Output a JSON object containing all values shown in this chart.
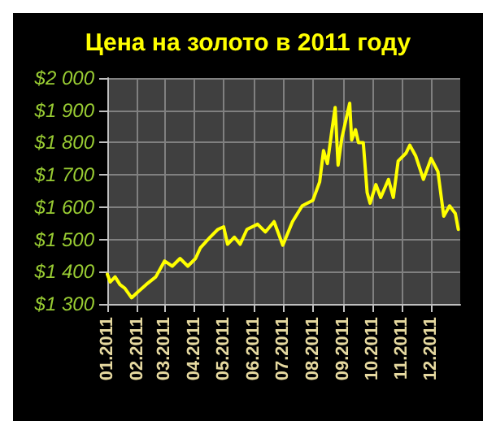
{
  "chart_data": {
    "type": "line",
    "title": "Цена на золото в 2011 году",
    "x": [
      "2011-01-01",
      "2011-01-04",
      "2011-01-09",
      "2011-01-14",
      "2011-01-19",
      "2011-01-26",
      "2011-02-01",
      "2011-02-10",
      "2011-02-20",
      "2011-03-01",
      "2011-03-09",
      "2011-03-17",
      "2011-03-25",
      "2011-04-02",
      "2011-04-07",
      "2011-04-17",
      "2011-04-25",
      "2011-05-01",
      "2011-05-05",
      "2011-05-12",
      "2011-05-18",
      "2011-05-25",
      "2011-06-05",
      "2011-06-13",
      "2011-06-22",
      "2011-07-01",
      "2011-07-11",
      "2011-07-21",
      "2011-08-01",
      "2011-08-08",
      "2011-08-12",
      "2011-08-16",
      "2011-08-20",
      "2011-08-24",
      "2011-08-27",
      "2011-08-31",
      "2011-09-08",
      "2011-09-10",
      "2011-09-14",
      "2011-09-17",
      "2011-09-22",
      "2011-09-26",
      "2011-09-29",
      "2011-10-05",
      "2011-10-10",
      "2011-10-18",
      "2011-10-23",
      "2011-10-28",
      "2011-11-05",
      "2011-11-09",
      "2011-11-15",
      "2011-11-23",
      "2011-12-01",
      "2011-12-08",
      "2011-12-14",
      "2011-12-20",
      "2011-12-26",
      "2011-12-29"
    ],
    "series": [
      {
        "color": "#ffff00",
        "values": [
          1392,
          1368,
          1384,
          1360,
          1349,
          1319,
          1336,
          1360,
          1384,
          1433,
          1417,
          1441,
          1417,
          1441,
          1474,
          1507,
          1531,
          1539,
          1485,
          1507,
          1485,
          1531,
          1547,
          1523,
          1555,
          1482,
          1555,
          1604,
          1621,
          1678,
          1775,
          1735,
          1824,
          1909,
          1730,
          1816,
          1922,
          1808,
          1840,
          1800,
          1800,
          1645,
          1612,
          1670,
          1630,
          1686,
          1630,
          1743,
          1767,
          1792,
          1759,
          1686,
          1751,
          1710,
          1572,
          1604,
          1580,
          1531
        ]
      }
    ],
    "xlim": [
      "2011-01-01",
      "2011-12-31"
    ],
    "xticks": [
      {
        "value": "2011-01-01",
        "label": "01.2011"
      },
      {
        "value": "2011-02-01",
        "label": "02.2011"
      },
      {
        "value": "2011-03-01",
        "label": "03.2011"
      },
      {
        "value": "2011-04-01",
        "label": "04.2011"
      },
      {
        "value": "2011-05-01",
        "label": "05.2011"
      },
      {
        "value": "2011-06-01",
        "label": "06.2011"
      },
      {
        "value": "2011-07-01",
        "label": "07.2011"
      },
      {
        "value": "2011-08-01",
        "label": "08.2011"
      },
      {
        "value": "2011-09-01",
        "label": "09.2011"
      },
      {
        "value": "2011-10-01",
        "label": "10.2011"
      },
      {
        "value": "2011-11-01",
        "label": "11.2011"
      },
      {
        "value": "2011-12-01",
        "label": "12.2011"
      }
    ],
    "ylim": [
      1300,
      2000
    ],
    "yticks": [
      {
        "value": 1300,
        "label": "$1 300"
      },
      {
        "value": 1400,
        "label": "$1 400"
      },
      {
        "value": 1500,
        "label": "$1 500"
      },
      {
        "value": 1600,
        "label": "$1 600"
      },
      {
        "value": 1700,
        "label": "$1 700"
      },
      {
        "value": 1800,
        "label": "$1 800"
      },
      {
        "value": 1900,
        "label": "$1 900"
      },
      {
        "value": 2000,
        "label": "$2 000"
      }
    ],
    "grid": true,
    "marker": "none",
    "line_style": "solid"
  }
}
